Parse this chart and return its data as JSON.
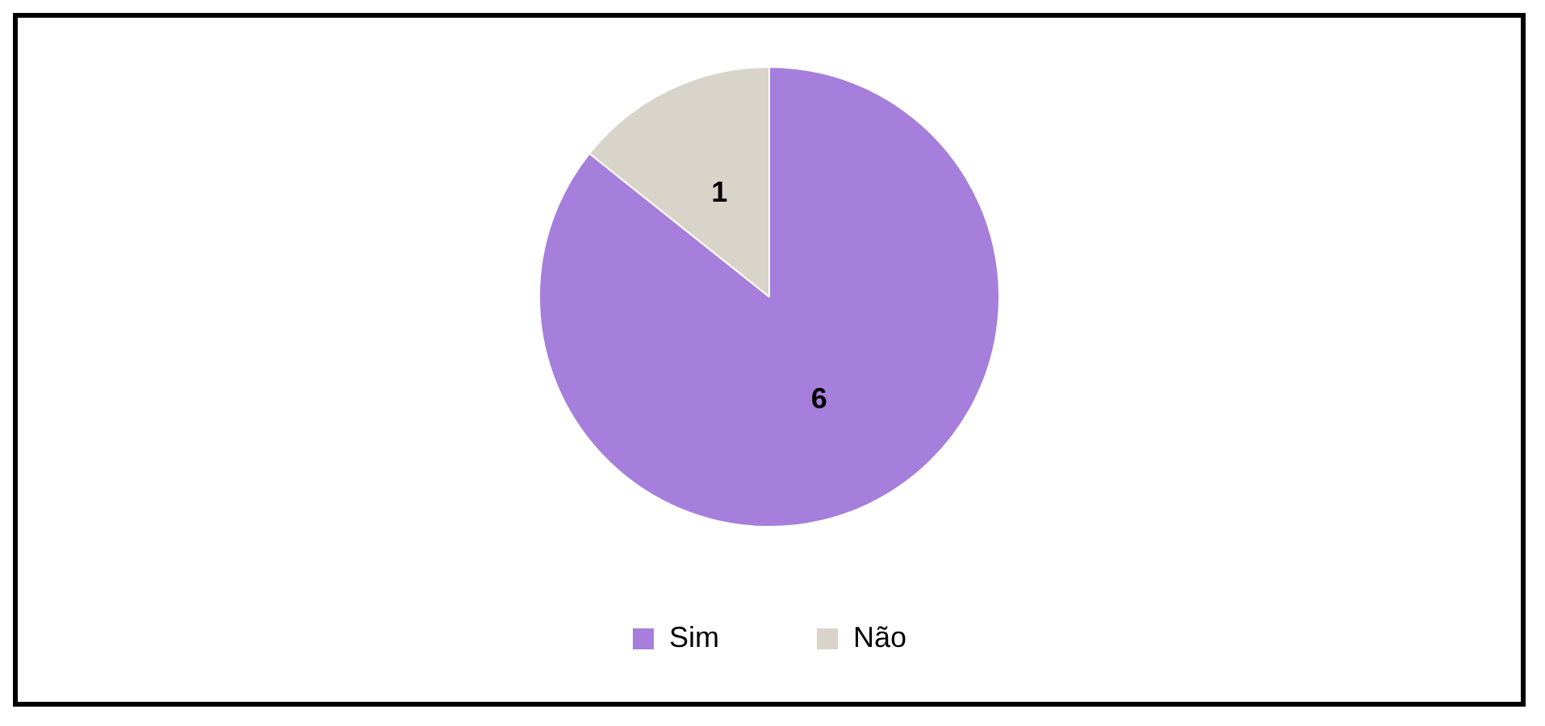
{
  "chart_data": {
    "type": "pie",
    "categories": [
      "Sim",
      "Não"
    ],
    "values": [
      6,
      1
    ],
    "colors": [
      "#a57fdb",
      "#d8d4ca"
    ],
    "data_labels": true,
    "legend": "bottom"
  }
}
